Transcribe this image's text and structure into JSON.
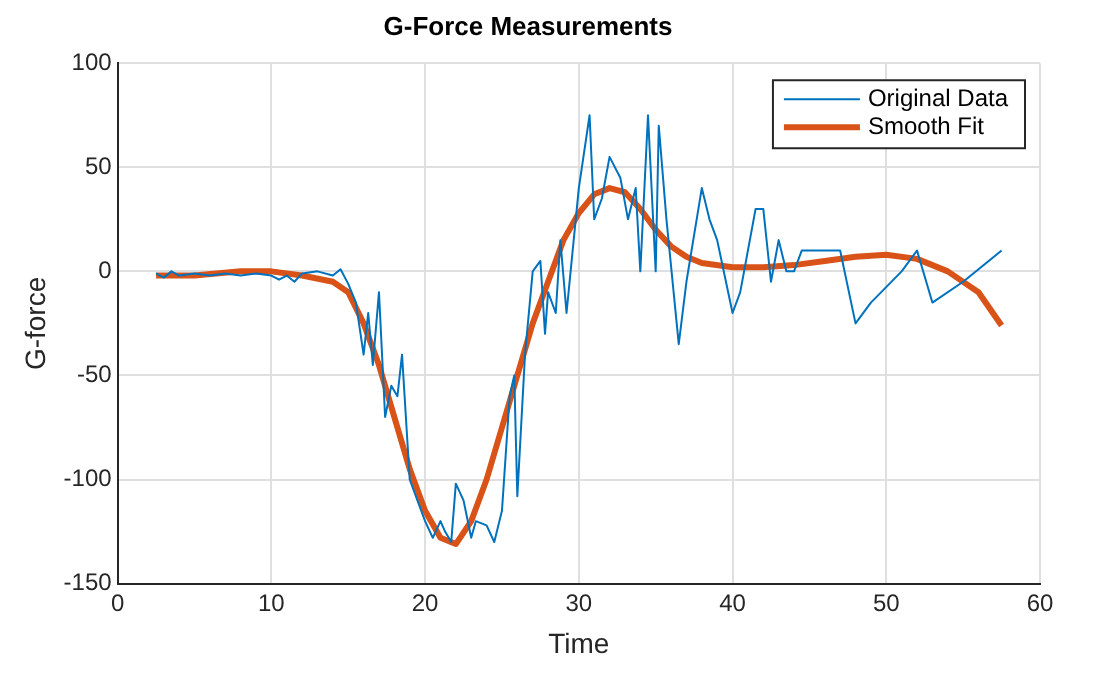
{
  "chart_data": {
    "type": "line",
    "title": "G-Force Measurements",
    "xlabel": "Time",
    "ylabel": "G-force",
    "xlim": [
      0,
      60
    ],
    "xticks": [
      0,
      10,
      20,
      30,
      40,
      50,
      60
    ],
    "ylim": [
      -150,
      100
    ],
    "yticks": [
      -150,
      -100,
      -50,
      0,
      50,
      100
    ],
    "grid": true,
    "legend": "top right",
    "marker": "none",
    "series": [
      {
        "name": "Original Data",
        "color": "#0072bd",
        "x": [
          2.5,
          3,
          3.5,
          4,
          5,
          6,
          7,
          8,
          9,
          10,
          10.5,
          11,
          11.5,
          12,
          13,
          14,
          14.5,
          15,
          15.5,
          16,
          16.3,
          16.6,
          17,
          17.4,
          17.8,
          18.2,
          18.5,
          19,
          19.5,
          20,
          20.5,
          21,
          21.3,
          21.7,
          22,
          22.5,
          23,
          23.3,
          24,
          24.5,
          25,
          25.5,
          25.8,
          26,
          26.5,
          27,
          27.5,
          27.8,
          28,
          28.5,
          28.8,
          29.2,
          30,
          30.7,
          31,
          31.5,
          32,
          32.7,
          33.2,
          33.7,
          34,
          34.5,
          35,
          35.2,
          35.7,
          36.5,
          37,
          38,
          38.5,
          39,
          40,
          40.5,
          41.5,
          42,
          42.5,
          43,
          43.5,
          44,
          44.5,
          46,
          47,
          48,
          49,
          51,
          52,
          53,
          55,
          57.5
        ],
        "values": [
          -1,
          -3,
          0,
          -2,
          -1,
          -2,
          -1,
          -2,
          -1,
          -2,
          -4,
          -2,
          -5,
          -1,
          0,
          -2,
          1,
          -6,
          -15,
          -40,
          -20,
          -45,
          -10,
          -70,
          -55,
          -60,
          -40,
          -100,
          -110,
          -120,
          -128,
          -120,
          -125,
          -130,
          -102,
          -110,
          -128,
          -120,
          -122,
          -130,
          -115,
          -60,
          -50,
          -108,
          -40,
          0,
          5,
          -30,
          -10,
          -20,
          15,
          -20,
          40,
          75,
          25,
          35,
          55,
          45,
          25,
          40,
          0,
          75,
          0,
          70,
          25,
          -35,
          -5,
          40,
          25,
          15,
          -20,
          -10,
          30,
          30,
          -5,
          15,
          0,
          0,
          10,
          10,
          10,
          -25,
          -15,
          0,
          10,
          -15,
          -5,
          10
        ]
      },
      {
        "name": "Smooth Fit",
        "color": "#d95319",
        "x": [
          2.5,
          5,
          8,
          10,
          12,
          14,
          15,
          16,
          17,
          18,
          19,
          20,
          21,
          22,
          23,
          24,
          25,
          26,
          27,
          28,
          29,
          30,
          31,
          32,
          33,
          34,
          35,
          36,
          37,
          38,
          40,
          42,
          44,
          46,
          48,
          50,
          52,
          54,
          56,
          57.5
        ],
        "values": [
          -2,
          -2,
          0,
          0,
          -2,
          -5,
          -10,
          -25,
          -45,
          -70,
          -95,
          -115,
          -128,
          -131,
          -120,
          -100,
          -75,
          -50,
          -25,
          -5,
          15,
          28,
          37,
          40,
          38,
          30,
          20,
          12,
          7,
          4,
          2,
          2,
          3,
          5,
          7,
          8,
          6,
          0,
          -10,
          -26
        ]
      }
    ]
  }
}
